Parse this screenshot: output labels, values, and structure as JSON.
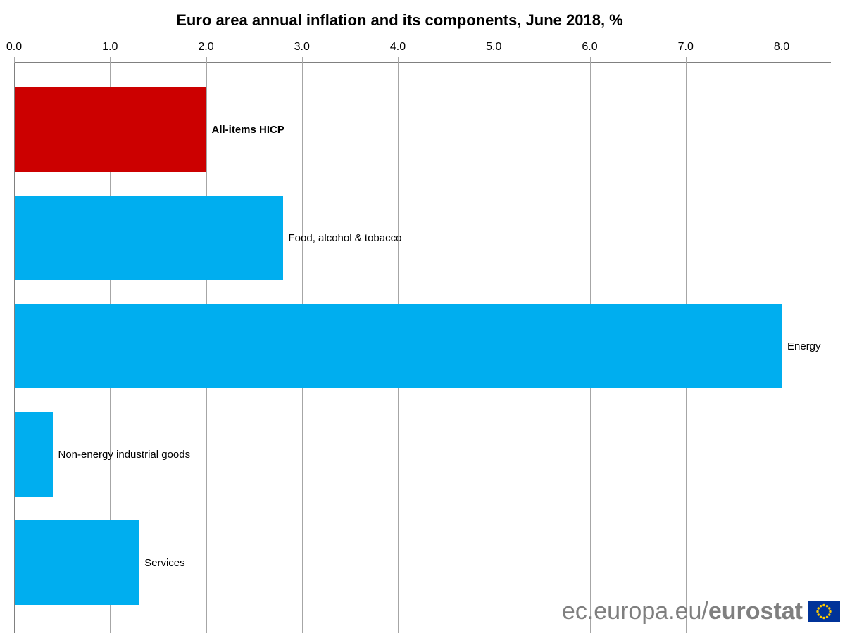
{
  "title": "Euro area annual inflation and its components, June 2018, %",
  "chart_data": {
    "type": "bar",
    "orientation": "horizontal",
    "title": "Euro area annual inflation and its components, June 2018, %",
    "categories": [
      "All-items HICP",
      "Food, alcohol & tobacco",
      "Energy",
      "Non-energy industrial goods",
      "Services"
    ],
    "values": [
      2.0,
      2.8,
      8.0,
      0.4,
      1.3
    ],
    "bar_colors": [
      "#cc0000",
      "#00aeef",
      "#00aeef",
      "#00aeef",
      "#00aeef"
    ],
    "label_bold": [
      true,
      false,
      false,
      false,
      false
    ],
    "x_ticks": [
      "0.0",
      "1.0",
      "2.0",
      "3.0",
      "4.0",
      "5.0",
      "6.0",
      "7.0",
      "8.0"
    ],
    "x_tick_values": [
      0,
      1,
      2,
      3,
      4,
      5,
      6,
      7,
      8
    ],
    "xlim": [
      0,
      8.5
    ],
    "axis_position": "top",
    "grid": true,
    "legend": false,
    "colors": {
      "highlight": "#cc0000",
      "series": "#00aeef",
      "grid": "#a6a6a6",
      "axis": "#808080",
      "text": "#000000"
    }
  },
  "footer": {
    "url_regular": "ec.europa.eu/",
    "url_bold": "eurostat",
    "flag_colors": {
      "background": "#003399",
      "stars": "#ffcc00"
    }
  }
}
